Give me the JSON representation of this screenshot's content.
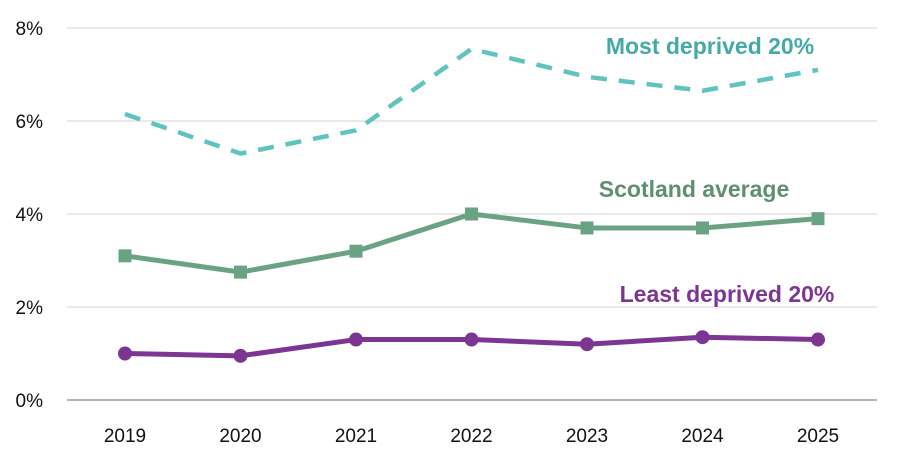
{
  "chart_data": {
    "type": "line",
    "title": "",
    "xlabel": "",
    "ylabel": "",
    "categories": [
      "2019",
      "2020",
      "2021",
      "2022",
      "2023",
      "2024",
      "2025"
    ],
    "ylim": [
      0,
      8
    ],
    "y_ticks": [
      0,
      2,
      4,
      6,
      8
    ],
    "y_tick_labels": [
      "0%",
      "2%",
      "4%",
      "6%",
      "8%"
    ],
    "grid": true,
    "legend": "none (series labelled directly on the lines)",
    "series": [
      {
        "name": "Most deprived 20%",
        "values": [
          6.15,
          5.3,
          5.8,
          7.55,
          6.95,
          6.65,
          7.1
        ],
        "color": "#5fc4c0",
        "style": "dashed",
        "marker": "none"
      },
      {
        "name": "Scotland average",
        "values": [
          3.1,
          2.75,
          3.2,
          4.0,
          3.7,
          3.7,
          3.9
        ],
        "color": "#6aa383",
        "style": "solid",
        "marker": "square"
      },
      {
        "name": "Least deprived 20%",
        "values": [
          1.0,
          0.95,
          1.3,
          1.3,
          1.2,
          1.35,
          1.3
        ],
        "color": "#7c3591",
        "style": "solid",
        "marker": "circle"
      }
    ],
    "label_colors": [
      "#45aaa6",
      "#5e8f6f",
      "#7c3591"
    ]
  }
}
